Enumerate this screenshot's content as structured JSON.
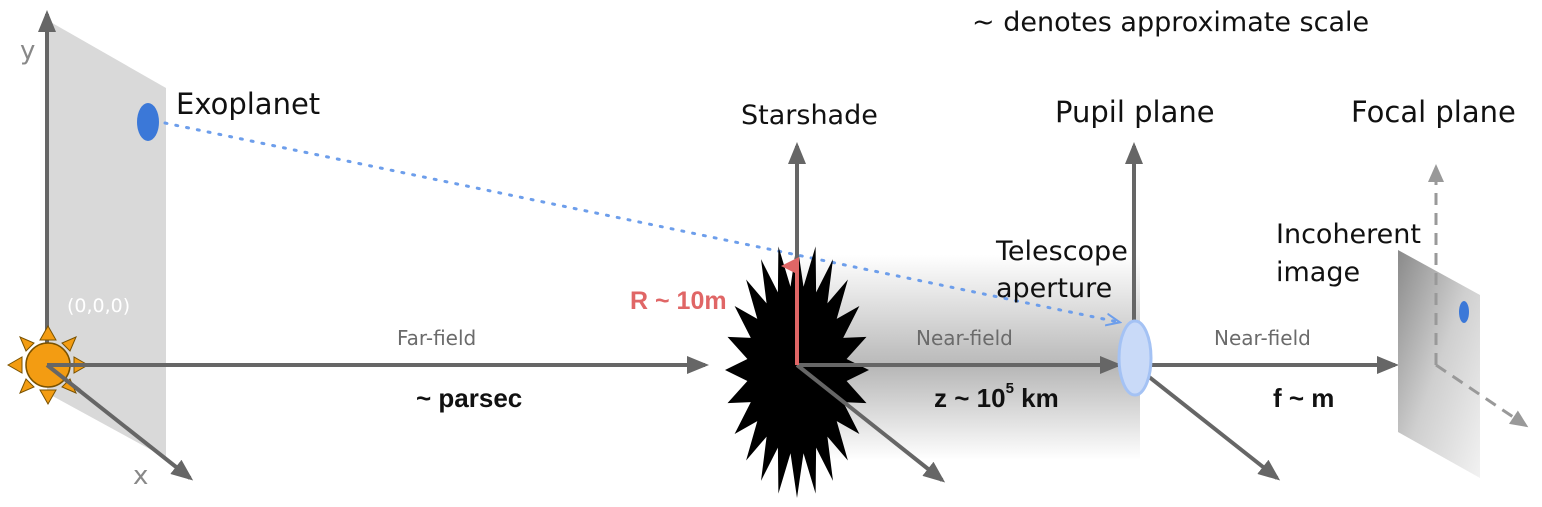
{
  "note": "~ denotes approximate scale",
  "labels": {
    "exoplanet": "Exoplanet",
    "starshade": "Starshade",
    "pupil_plane": "Pupil plane",
    "focal_plane": "Focal plane",
    "telescope_aperture_1": "Telescope",
    "telescope_aperture_2": "aperture",
    "incoherent_image_1": "Incoherent",
    "incoherent_image_2": "image",
    "origin": "(0,0,0)",
    "axis_y": "y",
    "axis_x": "x",
    "radius": "R ~ 10m"
  },
  "regions": {
    "far_field": "Far-field",
    "near_field_1": "Near-field",
    "near_field_2": "Near-field"
  },
  "distances": {
    "parsec": "~ parsec",
    "z_prefix": "z ~ 10",
    "z_exp": "5",
    "z_unit": " km",
    "f": "f ~ m"
  },
  "colors": {
    "axis": "#666666",
    "plane": "#d9d9d9",
    "planet": "#3b78d8",
    "sight_line": "#6d9eeb",
    "star": "#f39c12",
    "starshade": "#000000",
    "radius": "#e06666",
    "lens": "#c9daf8"
  }
}
